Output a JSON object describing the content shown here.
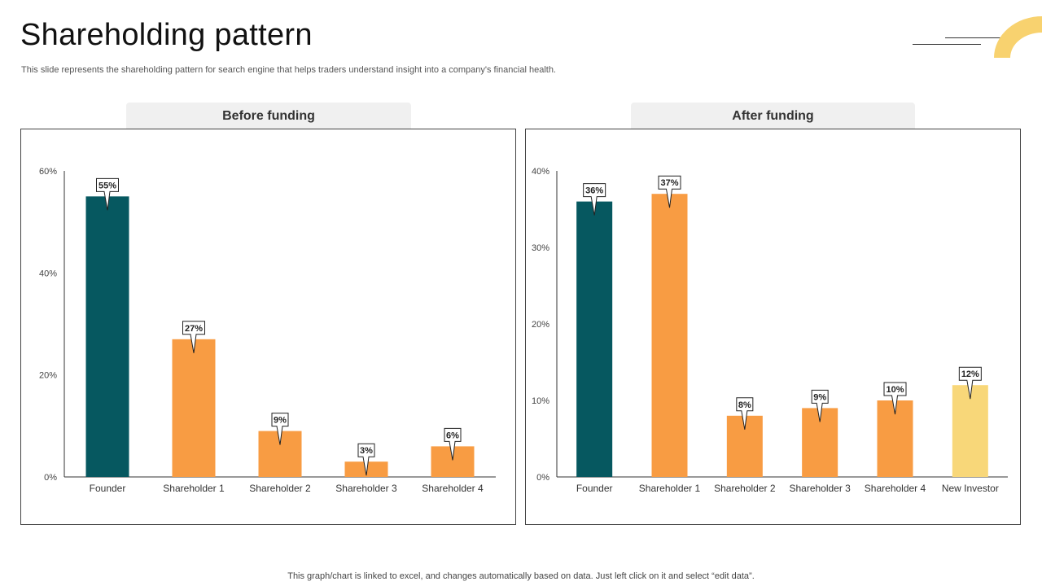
{
  "page": {
    "title": "Shareholding pattern",
    "subtitle": "This slide represents the shareholding pattern for search engine that helps traders understand insight into a company's financial health.",
    "footer": "This graph/chart is linked to excel,  and changes automatically based on data. Just left click on it and select “edit data”."
  },
  "colors": {
    "teal": "#065860",
    "orange": "#f89c43",
    "yellow": "#f8d779",
    "accent": "#f8d26f",
    "axis": "#333333"
  },
  "chart_data": [
    {
      "type": "bar",
      "title": "Before funding",
      "categories": [
        "Founder",
        "Shareholder 1",
        "Shareholder 2",
        "Shareholder 3",
        "Shareholder 4"
      ],
      "values": [
        55,
        27,
        9,
        3,
        6
      ],
      "data_labels": [
        "55%",
        "27%",
        "9%",
        "3%",
        "6%"
      ],
      "bar_colors": [
        "teal",
        "orange",
        "orange",
        "orange",
        "orange"
      ],
      "ylim": [
        0,
        60
      ],
      "yticks": [
        0,
        20,
        40,
        60
      ],
      "ytick_labels": [
        "0%",
        "20%",
        "40%",
        "60%"
      ],
      "xlabel": "",
      "ylabel": "",
      "grid": false,
      "legend": "none"
    },
    {
      "type": "bar",
      "title": "After funding",
      "categories": [
        "Founder",
        "Shareholder 1",
        "Shareholder 2",
        "Shareholder 3",
        "Shareholder 4",
        "New Investor"
      ],
      "values": [
        36,
        37,
        8,
        9,
        10,
        12
      ],
      "data_labels": [
        "36%",
        "37%",
        "8%",
        "9%",
        "10%",
        "12%"
      ],
      "bar_colors": [
        "teal",
        "orange",
        "orange",
        "orange",
        "orange",
        "yellow"
      ],
      "ylim": [
        0,
        40
      ],
      "yticks": [
        0,
        10,
        20,
        30,
        40
      ],
      "ytick_labels": [
        "0%",
        "10%",
        "20%",
        "30%",
        "40%"
      ],
      "xlabel": "",
      "ylabel": "",
      "grid": false,
      "legend": "none"
    }
  ]
}
